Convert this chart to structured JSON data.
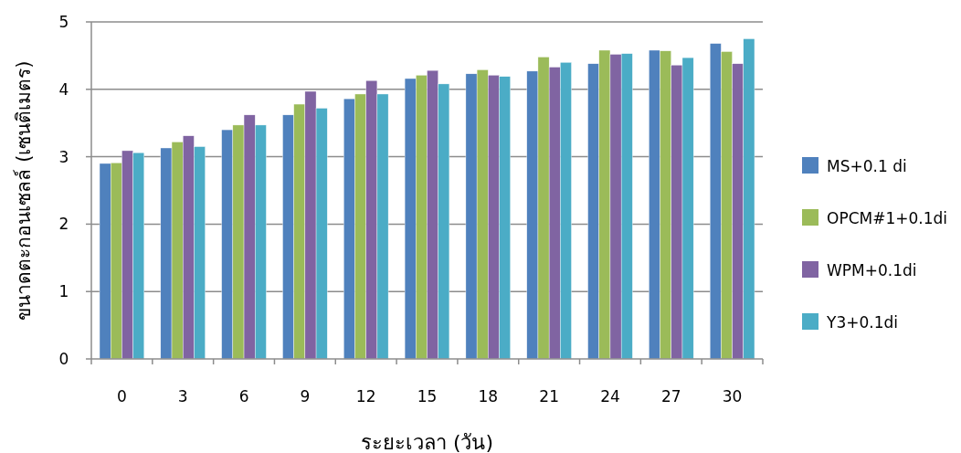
{
  "chart_data": {
    "type": "bar",
    "xlabel": "ระยะเวลา (วัน)",
    "ylabel": "ขนาดตะกอนเซลล์ (เซนติเมตร)",
    "categories": [
      "0",
      "3",
      "6",
      "9",
      "12",
      "15",
      "18",
      "21",
      "24",
      "27",
      "30"
    ],
    "ylim": [
      0,
      5
    ],
    "yticks": [
      0,
      1,
      2,
      3,
      4,
      5
    ],
    "grid": "y",
    "legend": "right",
    "series": [
      {
        "name": "MS+0.1 di",
        "color": "#4f81bd",
        "values": [
          2.9,
          3.13,
          3.4,
          3.62,
          3.86,
          4.16,
          4.23,
          4.27,
          4.38,
          4.58,
          4.68
        ]
      },
      {
        "name": "OPCM#1+0.1di",
        "color": "#9bbb59",
        "values": [
          2.91,
          3.22,
          3.47,
          3.78,
          3.93,
          4.21,
          4.29,
          4.48,
          4.58,
          4.57,
          4.56
        ]
      },
      {
        "name": "WPM+0.1di",
        "color": "#8064a2",
        "values": [
          3.09,
          3.31,
          3.62,
          3.97,
          4.13,
          4.28,
          4.21,
          4.33,
          4.52,
          4.36,
          4.38
        ]
      },
      {
        "name": "Y3+0.1di",
        "color": "#4bacc6",
        "values": [
          3.06,
          3.15,
          3.47,
          3.72,
          3.93,
          4.08,
          4.19,
          4.4,
          4.53,
          4.47,
          4.75
        ]
      }
    ]
  }
}
